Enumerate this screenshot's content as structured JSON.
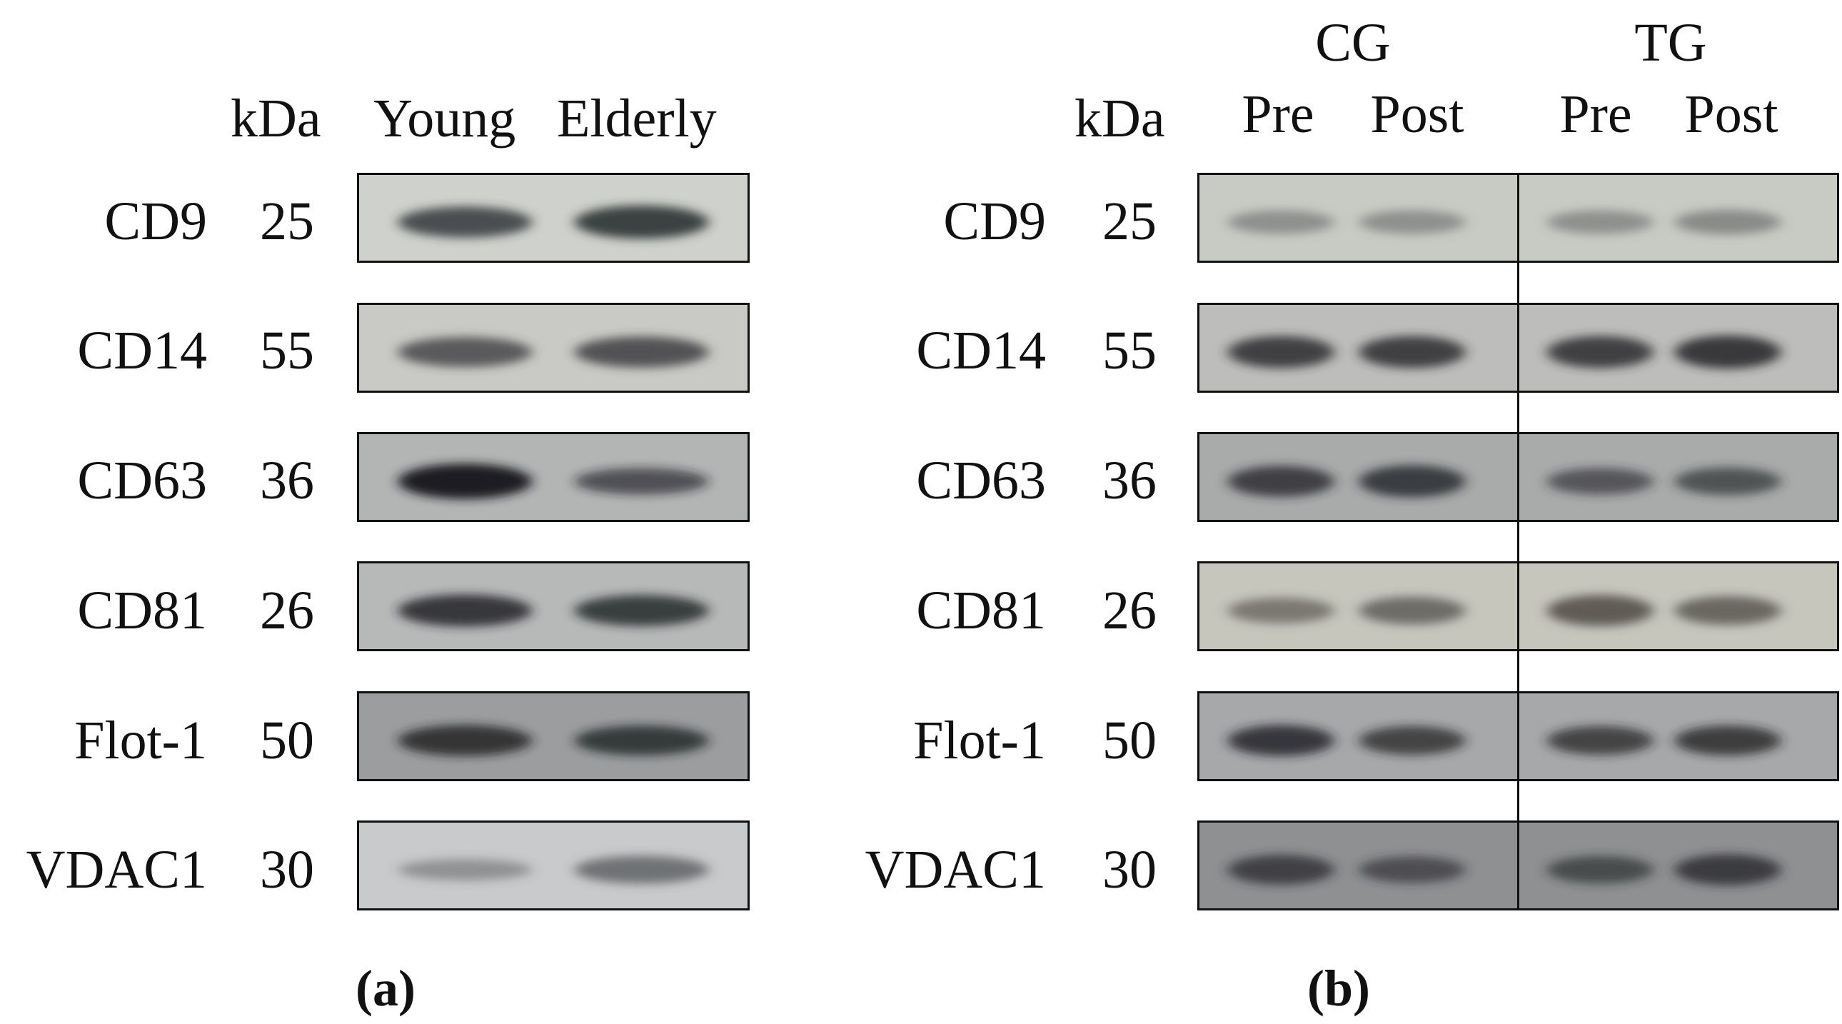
{
  "panel_a": {
    "header": {
      "kda": "kDa",
      "lanes": [
        "Young",
        "Elderly"
      ]
    },
    "rows": [
      {
        "protein": "CD9",
        "kda": "25",
        "bg": "#cfd1cc",
        "band": "#2e3236",
        "intensities": [
          0.8,
          0.9
        ]
      },
      {
        "protein": "CD14",
        "kda": "55",
        "bg": "#c9c9c6",
        "band": "#3a3b3e",
        "intensities": [
          0.75,
          0.8
        ]
      },
      {
        "protein": "CD63",
        "kda": "36",
        "bg": "#b3b4b4",
        "band": "#1d1f22",
        "intensities": [
          1.0,
          0.6
        ]
      },
      {
        "protein": "CD81",
        "kda": "26",
        "bg": "#b7b8b8",
        "band": "#222427",
        "intensities": [
          0.85,
          0.8
        ]
      },
      {
        "protein": "Flot-1",
        "kda": "50",
        "bg": "#9c9d9f",
        "band": "#1d1f22",
        "intensities": [
          0.8,
          0.75
        ]
      },
      {
        "protein": "VDAC1",
        "kda": "30",
        "bg": "#c9cacb",
        "band": "#4a4b4e",
        "intensities": [
          0.35,
          0.65
        ]
      }
    ],
    "caption": "(a)"
  },
  "panel_b": {
    "header": {
      "kda": "kDa",
      "groups": [
        "CG",
        "TG"
      ],
      "lanes": [
        "Pre",
        "Post",
        "Pre",
        "Post"
      ]
    },
    "rows": [
      {
        "protein": "CD9",
        "kda": "25",
        "bg": "#c8cac4",
        "band": "#5a5d5e",
        "intensities": [
          0.45,
          0.45,
          0.45,
          0.5
        ]
      },
      {
        "protein": "CD14",
        "kda": "55",
        "bg": "#bdbdbb",
        "band": "#2c2e31",
        "intensities": [
          0.85,
          0.85,
          0.85,
          0.9
        ]
      },
      {
        "protein": "CD63",
        "kda": "36",
        "bg": "#a9aaaa",
        "band": "#2a2c30",
        "intensities": [
          0.8,
          0.85,
          0.6,
          0.65
        ]
      },
      {
        "protein": "CD81",
        "kda": "26",
        "bg": "#c6c6bd",
        "band": "#4a4641",
        "intensities": [
          0.55,
          0.65,
          0.8,
          0.7
        ]
      },
      {
        "protein": "Flot-1",
        "kda": "50",
        "bg": "#a7a8aa",
        "band": "#1f2124",
        "intensities": [
          0.8,
          0.7,
          0.7,
          0.75
        ]
      },
      {
        "protein": "VDAC1",
        "kda": "30",
        "bg": "#8f9092",
        "band": "#2a2c2f",
        "intensities": [
          0.75,
          0.6,
          0.65,
          0.8
        ]
      }
    ],
    "caption": "(b)"
  }
}
